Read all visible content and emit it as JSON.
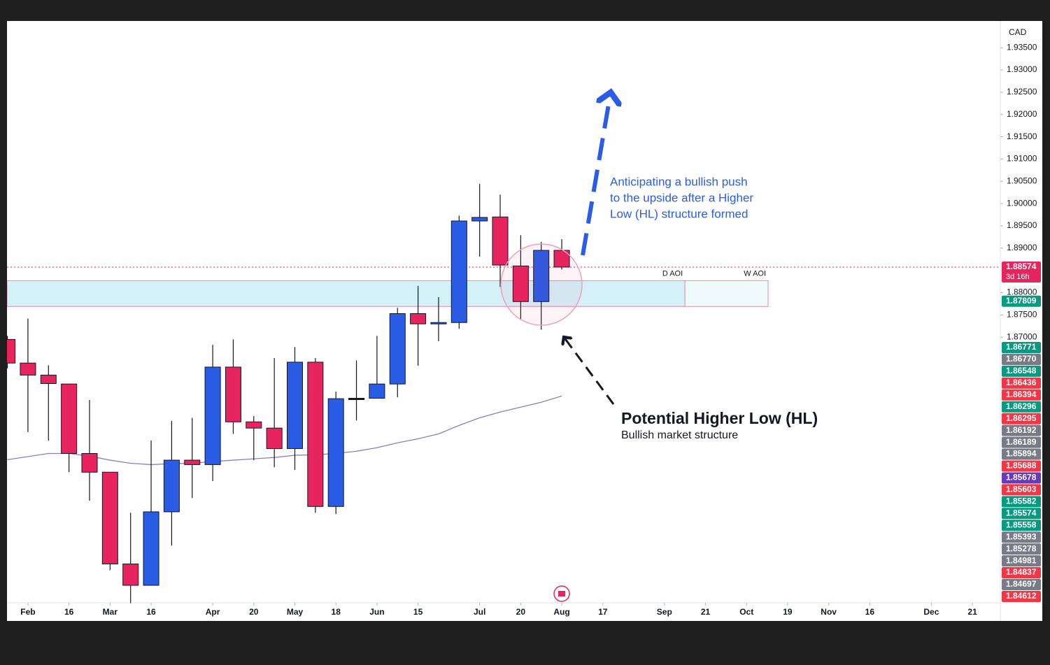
{
  "chart_data": {
    "type": "candlestick",
    "axis_unit": "CAD",
    "x": [
      -1,
      0,
      1,
      2,
      3,
      4,
      5,
      6,
      7,
      8,
      9,
      10,
      11,
      12,
      13,
      14,
      15,
      16,
      17,
      18,
      19,
      20,
      21,
      22,
      23,
      24,
      25,
      26
    ],
    "open": [
      1.8695,
      1.8642,
      1.8615,
      1.8595,
      1.8439,
      1.8397,
      1.8191,
      1.8143,
      1.8308,
      1.8424,
      1.8414,
      1.8633,
      1.851,
      1.8496,
      1.845,
      1.8644,
      1.832,
      1.8563,
      1.8563,
      1.8595,
      1.8753,
      1.873,
      1.8733,
      1.8961,
      1.897,
      1.886,
      1.878,
      1.8895
    ],
    "high": [
      1.8703,
      1.8742,
      1.8637,
      1.8595,
      1.8559,
      1.8397,
      1.8306,
      1.8468,
      1.8512,
      1.8519,
      1.8683,
      1.8695,
      1.8523,
      1.8653,
      1.8678,
      1.8653,
      1.8578,
      1.8648,
      1.8703,
      1.8766,
      1.8815,
      1.879,
      1.8973,
      1.9044,
      1.902,
      1.8929,
      1.8914,
      1.892
    ],
    "low": [
      1.863,
      1.8487,
      1.8468,
      1.8397,
      1.8333,
      1.8177,
      1.8103,
      1.8143,
      1.8232,
      1.8339,
      1.8377,
      1.8483,
      1.8424,
      1.8408,
      1.8402,
      1.8306,
      1.8303,
      1.8513,
      1.8563,
      1.8565,
      1.8636,
      1.8691,
      1.8719,
      1.8881,
      1.8813,
      1.8739,
      1.8717,
      1.8852
    ],
    "close": [
      1.8642,
      1.8615,
      1.8596,
      1.8439,
      1.8397,
      1.8191,
      1.8143,
      1.8308,
      1.8424,
      1.8414,
      1.8633,
      1.851,
      1.8496,
      1.845,
      1.8644,
      1.832,
      1.8562,
      1.8563,
      1.8595,
      1.8753,
      1.873,
      1.8733,
      1.8961,
      1.8969,
      1.8862,
      1.878,
      1.8895,
      1.88574
    ],
    "up_color": "#2b5ce6",
    "down_color": "#e8245f",
    "neutral_color": "#131722",
    "ma": {
      "color": "#8e7cc3",
      "values": [
        1.8425,
        1.8432,
        1.8439,
        1.8439,
        1.8433,
        1.8424,
        1.8417,
        1.8414,
        1.8416,
        1.8417,
        1.8421,
        1.8424,
        1.8427,
        1.843,
        1.8435,
        1.8436,
        1.8439,
        1.8444,
        1.8452,
        1.8463,
        1.8472,
        1.8483,
        1.8502,
        1.8519,
        1.8532,
        1.8543,
        1.8554,
        1.8568
      ]
    },
    "xlim": [
      -1.02,
      47.36
    ],
    "ylim": [
      1.8063,
      1.941
    ],
    "xticks": [
      {
        "value": 0,
        "label": "Feb"
      },
      {
        "value": 2,
        "label": "16"
      },
      {
        "value": 4,
        "label": "Mar"
      },
      {
        "value": 6,
        "label": "16"
      },
      {
        "value": 9,
        "label": "Apr"
      },
      {
        "value": 11,
        "label": "20"
      },
      {
        "value": 13,
        "label": "May"
      },
      {
        "value": 15,
        "label": "18"
      },
      {
        "value": 17,
        "label": "Jun"
      },
      {
        "value": 19,
        "label": "15"
      },
      {
        "value": 22,
        "label": "Jul"
      },
      {
        "value": 24,
        "label": "20"
      },
      {
        "value": 26,
        "label": "Aug"
      },
      {
        "value": 28,
        "label": "17"
      },
      {
        "value": 31,
        "label": "Sep"
      },
      {
        "value": 33,
        "label": "21"
      },
      {
        "value": 35,
        "label": "Oct"
      },
      {
        "value": 37,
        "label": "19"
      },
      {
        "value": 39,
        "label": "Nov"
      },
      {
        "value": 41,
        "label": "16"
      },
      {
        "value": 44,
        "label": "Dec"
      },
      {
        "value": 46,
        "label": "21"
      }
    ],
    "yticks": [
      {
        "value": 1.87,
        "label": "1.87000"
      },
      {
        "value": 1.875,
        "label": "1.87500"
      },
      {
        "value": 1.88,
        "label": "1.88000"
      },
      {
        "value": 1.89,
        "label": "1.89000"
      },
      {
        "value": 1.895,
        "label": "1.89500"
      },
      {
        "value": 1.9,
        "label": "1.90000"
      },
      {
        "value": 1.905,
        "label": "1.90500"
      },
      {
        "value": 1.91,
        "label": "1.91000"
      },
      {
        "value": 1.915,
        "label": "1.91500"
      },
      {
        "value": 1.92,
        "label": "1.92000"
      },
      {
        "value": 1.925,
        "label": "1.92500"
      },
      {
        "value": 1.93,
        "label": "1.93000"
      },
      {
        "value": 1.935,
        "label": "1.93500"
      }
    ],
    "current_price": {
      "value": 1.88574,
      "label": "1.88574",
      "countdown": "3d 16h",
      "color": "#e8245f"
    },
    "level_price": {
      "value": 1.87809,
      "label": "1.87809",
      "color": "#089981"
    },
    "zones": [
      {
        "label": "D AOI",
        "x_start": -1.02,
        "x_end": 32,
        "y": [
          1.8769,
          1.8827
        ],
        "fill": "#d3f1f7"
      },
      {
        "label": "W AOI",
        "x_start": 32,
        "x_end": 36.05,
        "y": [
          1.8769,
          1.8827
        ],
        "fill": "#eef9fb"
      }
    ],
    "price_labels": [
      {
        "label": "1.86771",
        "color": "#089981"
      },
      {
        "label": "1.86770",
        "color": "#787b86"
      },
      {
        "label": "1.86548",
        "color": "#089981"
      },
      {
        "label": "1.86436",
        "color": "#f23645"
      },
      {
        "label": "1.86394",
        "color": "#f23645"
      },
      {
        "label": "1.86296",
        "color": "#089981"
      },
      {
        "label": "1.86295",
        "color": "#f23645"
      },
      {
        "label": "1.86192",
        "color": "#787b86"
      },
      {
        "label": "1.86189",
        "color": "#787b86"
      },
      {
        "label": "1.85894",
        "color": "#787b86"
      },
      {
        "label": "1.85688",
        "color": "#f23645"
      },
      {
        "label": "1.85678",
        "color": "#673ab7"
      },
      {
        "label": "1.85603",
        "color": "#f23645"
      },
      {
        "label": "1.85582",
        "color": "#089981"
      },
      {
        "label": "1.85574",
        "color": "#089981"
      },
      {
        "label": "1.85558",
        "color": "#089981"
      },
      {
        "label": "1.85393",
        "color": "#787b86"
      },
      {
        "label": "1.85278",
        "color": "#787b86"
      },
      {
        "label": "1.84981",
        "color": "#787b86"
      },
      {
        "label": "1.84837",
        "color": "#f23645"
      },
      {
        "label": "1.84697",
        "color": "#787b86"
      },
      {
        "label": "1.84612",
        "color": "#f23645"
      }
    ],
    "annotations": {
      "upside_text": [
        "Anticipating a bullish push",
        "to the upside after a Higher",
        "Low (HL) structure formed"
      ],
      "hl_title": "Potential Higher Low (HL)",
      "hl_subtitle": "Bullish market structure"
    }
  }
}
